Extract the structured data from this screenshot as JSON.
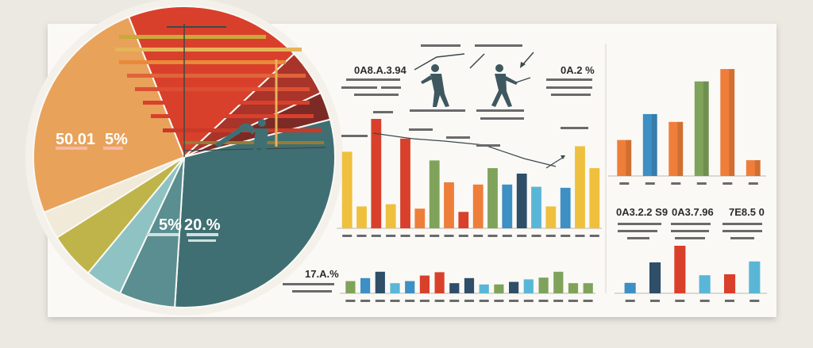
{
  "colors": {
    "background": "#ece9e2",
    "panel": "#faf9f6",
    "red": "#d9402b",
    "orange": "#ee7e3a",
    "yellow": "#efc03e",
    "teal": "#3f6f73",
    "blue": "#3d8fc4",
    "sky": "#5ab6d6",
    "green": "#7fa35a",
    "olive": "#b9a840",
    "navy": "#2f4e68",
    "peach": "#f3c3a3",
    "maroon": "#7c2a25"
  },
  "icons": [
    "person-silhouette-icon",
    "person-walking-icon",
    "arrow-up-icon",
    "arrow-down-icon"
  ],
  "texts": {
    "pie_value_a": "50.01",
    "pie_value_b": "5%",
    "pie_sub_a": "           ",
    "pie_sub_b": "      ",
    "pie_value_c": "5%",
    "pie_value_d": "20.%",
    "callout_left": "0A8.A.3.94",
    "callout_right": "0A.2 %",
    "mid_value_center": "17.A.%",
    "right_value_1": "0A3.2.2 S9",
    "right_value_2": "0A3.7.96",
    "right_value_3": "7E8.5 0"
  },
  "chart_data": [
    {
      "type": "pie",
      "slices": [
        {
          "color": "#d9402b",
          "value": 19
        },
        {
          "color": "#a8342a",
          "value": 5
        },
        {
          "color": "#7c2a25",
          "value": 3
        },
        {
          "color": "#3f6f73",
          "value": 30
        },
        {
          "color": "#5a8e90",
          "value": 6
        },
        {
          "color": "#8fc2c3",
          "value": 4
        },
        {
          "color": "#bfb449",
          "value": 5
        },
        {
          "color": "#f1ead8",
          "value": 3
        },
        {
          "color": "#e8a25a",
          "value": 25
        }
      ]
    },
    {
      "type": "bar",
      "name": "bar-chart-top-left",
      "ylim": [
        0,
        100
      ],
      "values": [
        70,
        20,
        100,
        22,
        82,
        18,
        62,
        42,
        15,
        40,
        55,
        40,
        50,
        38,
        20,
        37,
        75,
        55
      ],
      "colors": [
        "#efc03e",
        "#efc03e",
        "#d9402b",
        "#efc03e",
        "#d9402b",
        "#ee7e3a",
        "#7fa35a",
        "#ee7e3a",
        "#d9402b",
        "#ee7e3a",
        "#7fa35a",
        "#3d8fc4",
        "#2f4e68",
        "#5ab6d6",
        "#efc03e",
        "#3d8fc4",
        "#efc03e",
        "#efc03e"
      ]
    },
    {
      "type": "bar",
      "name": "bar-chart-bottom-left",
      "ylim": [
        0,
        100
      ],
      "values": [
        48,
        60,
        85,
        40,
        48,
        70,
        83,
        40,
        60,
        35,
        35,
        45,
        55,
        62,
        85,
        40,
        40
      ],
      "colors": [
        "#7fa35a",
        "#3d8fc4",
        "#2f4e68",
        "#5ab6d6",
        "#3d8fc4",
        "#d9402b",
        "#d9402b",
        "#2f4e68",
        "#2f4e68",
        "#5ab6d6",
        "#7fa35a",
        "#2f4e68",
        "#5ab6d6",
        "#7fa35a",
        "#7fa35a",
        "#7fa35a",
        "#7fa35a"
      ]
    },
    {
      "type": "bar",
      "name": "bar-chart-top-right",
      "ylim": [
        0,
        100
      ],
      "values": [
        32,
        55,
        48,
        84,
        95,
        14
      ],
      "colors": [
        "#ee7e3a",
        "#3d8fc4",
        "#ee7e3a",
        "#7fa35a",
        "#ee7e3a",
        "#ee7e3a"
      ]
    },
    {
      "type": "bar",
      "name": "bar-chart-bottom-right",
      "ylim": [
        0,
        100
      ],
      "values": [
        22,
        65,
        100,
        38,
        40,
        67
      ],
      "colors": [
        "#3d8fc4",
        "#2f4e68",
        "#d9402b",
        "#5ab6d6",
        "#d9402b",
        "#5ab6d6"
      ]
    }
  ]
}
